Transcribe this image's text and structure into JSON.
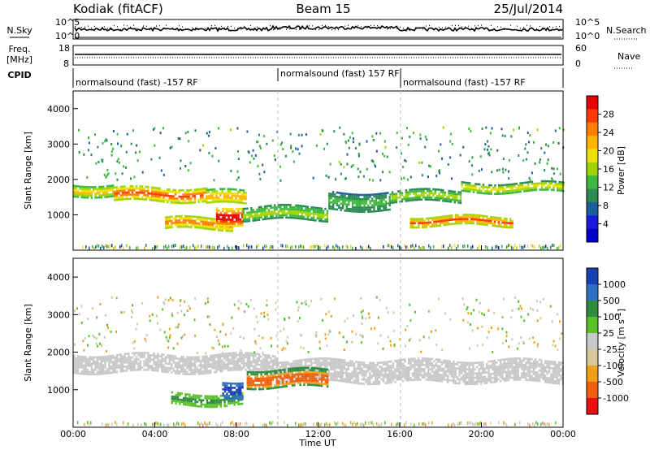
{
  "header": {
    "station": "Kodiak (fitACF)",
    "beam": "Beam 15",
    "date": "25/Jul/2014"
  },
  "panels": {
    "nsky": {
      "label": "N.Sky",
      "left_ticks": [
        "10^5",
        "10^0"
      ],
      "right_ticks": [
        "10^5",
        "10^0"
      ],
      "right_label": "N.Search"
    },
    "freq": {
      "label_line1": "Freq.",
      "label_line2": "[MHz]",
      "left_ticks": [
        "18",
        "8"
      ],
      "right_ticks": [
        "60",
        "0"
      ],
      "right_label": "Nave"
    },
    "cpid": {
      "label": "CPID",
      "segments": [
        {
          "text": "normalsound (fast) -157 RF",
          "start_hour": 0
        },
        {
          "text": "normalsound (fast) 157 RF",
          "start_hour": 10
        },
        {
          "text": "normalsound (fast) -157 RF",
          "start_hour": 16
        }
      ]
    }
  },
  "chart_data": [
    {
      "type": "heatmap",
      "name": "power",
      "ylabel": "Slant Range [km]",
      "xlim_hours": [
        0,
        24
      ],
      "ylim_km": [
        0,
        4500
      ],
      "y_ticks": [
        1000,
        2000,
        3000,
        4000
      ],
      "colorbar": {
        "label": "Power [dB]",
        "ticks": [
          "28",
          "24",
          "20",
          "16",
          "12",
          "8",
          "4"
        ],
        "colors": [
          "#e80000",
          "#ff3a00",
          "#ff7f00",
          "#ffb400",
          "#f0e000",
          "#9fd400",
          "#3db83d",
          "#2a8a52",
          "#1a5e9e",
          "#1b1bd9",
          "#0000c8"
        ]
      },
      "bands": [
        {
          "start": 0.0,
          "end": 2.0,
          "center_km": 1700,
          "halfwidth_km": 170,
          "level": 0.55
        },
        {
          "start": 2.0,
          "end": 6.5,
          "center_km": 1600,
          "halfwidth_km": 180,
          "level": 0.8
        },
        {
          "start": 6.5,
          "end": 8.5,
          "center_km": 1500,
          "halfwidth_km": 200,
          "level": 0.6
        },
        {
          "start": 4.5,
          "end": 7.8,
          "center_km": 780,
          "halfwidth_km": 150,
          "level": 0.75
        },
        {
          "start": 7.0,
          "end": 8.3,
          "center_km": 1000,
          "halfwidth_km": 250,
          "level": 0.98
        },
        {
          "start": 8.3,
          "end": 12.5,
          "center_km": 1050,
          "halfwidth_km": 200,
          "level": 0.4
        },
        {
          "start": 12.5,
          "end": 15.5,
          "center_km": 1400,
          "halfwidth_km": 250,
          "level": 0.3
        },
        {
          "start": 15.5,
          "end": 19.0,
          "center_km": 1550,
          "halfwidth_km": 150,
          "level": 0.45
        },
        {
          "start": 16.5,
          "end": 21.5,
          "center_km": 850,
          "halfwidth_km": 120,
          "level": 0.8
        },
        {
          "start": 19.0,
          "end": 24.0,
          "center_km": 1800,
          "halfwidth_km": 120,
          "level": 0.5
        }
      ]
    },
    {
      "type": "heatmap",
      "name": "velocity",
      "ylabel": "Slant Range [km]",
      "xlabel": "Time UT",
      "xlim_hours": [
        0,
        24
      ],
      "ylim_km": [
        0,
        4500
      ],
      "y_ticks": [
        1000,
        2000,
        3000,
        4000
      ],
      "x_ticks": [
        "00:00",
        "04:00",
        "08:00",
        "12:00",
        "16:00",
        "20:00",
        "00:00"
      ],
      "colorbar": {
        "label": "Velocity [m s-1]",
        "ticks": [
          "1000",
          "500",
          "100",
          "25",
          "-25",
          "-100",
          "-500",
          "-1000"
        ],
        "colors": [
          "#1a3fb0",
          "#2e6fc2",
          "#2f8c3f",
          "#58c028",
          "#c8c8c8",
          "#d8c898",
          "#f0a018",
          "#f06010",
          "#e81010"
        ]
      },
      "bands": [
        {
          "start": 0.0,
          "end": 10.0,
          "center_km": 1700,
          "halfwidth_km": 250,
          "kind": "ground"
        },
        {
          "start": 10.0,
          "end": 24.0,
          "center_km": 1500,
          "halfwidth_km": 300,
          "kind": "ground"
        },
        {
          "start": 4.8,
          "end": 8.3,
          "center_km": 750,
          "halfwidth_km": 160,
          "kind": "positive"
        },
        {
          "start": 7.3,
          "end": 8.3,
          "center_km": 1050,
          "halfwidth_km": 200,
          "kind": "strong_positive"
        },
        {
          "start": 8.5,
          "end": 12.5,
          "center_km": 1300,
          "halfwidth_km": 250,
          "kind": "negative"
        }
      ]
    }
  ],
  "x_axis": {
    "label": "Time UT",
    "ticks": [
      "00:00",
      "04:00",
      "08:00",
      "12:00",
      "16:00",
      "20:00",
      "00:00"
    ]
  }
}
